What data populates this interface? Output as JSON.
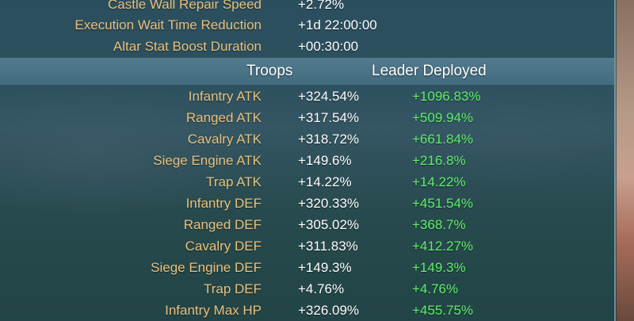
{
  "top_rows": [
    {
      "label": "Castle Wall Repair Speed",
      "value": "+2.72%"
    },
    {
      "label": "Execution Wait Time Reduction",
      "value": "+1d 22:00:00"
    },
    {
      "label": "Altar Stat Boost Duration",
      "value": "+00:30:00"
    }
  ],
  "section": {
    "troops_header": "Troops",
    "leader_header": "Leader Deployed"
  },
  "stats": [
    {
      "label": "Infantry ATK",
      "troops": "+324.54%",
      "leader": "+1096.83%"
    },
    {
      "label": "Ranged ATK",
      "troops": "+317.54%",
      "leader": "+509.94%"
    },
    {
      "label": "Cavalry ATK",
      "troops": "+318.72%",
      "leader": "+661.84%"
    },
    {
      "label": "Siege Engine ATK",
      "troops": "+149.6%",
      "leader": "+216.8%"
    },
    {
      "label": "Trap ATK",
      "troops": "+14.22%",
      "leader": "+14.22%"
    },
    {
      "label": "Infantry DEF",
      "troops": "+320.33%",
      "leader": "+451.54%"
    },
    {
      "label": "Ranged DEF",
      "troops": "+305.02%",
      "leader": "+368.7%"
    },
    {
      "label": "Cavalry DEF",
      "troops": "+311.83%",
      "leader": "+412.27%"
    },
    {
      "label": "Siege Engine DEF",
      "troops": "+149.3%",
      "leader": "+149.3%"
    },
    {
      "label": "Trap DEF",
      "troops": "+4.76%",
      "leader": "+4.76%"
    },
    {
      "label": "Infantry Max HP",
      "troops": "+326.09%",
      "leader": "+455.75%"
    }
  ],
  "colors": {
    "label": "#e9c27c",
    "value": "#ffffff",
    "leader_value": "#5ef06a"
  }
}
